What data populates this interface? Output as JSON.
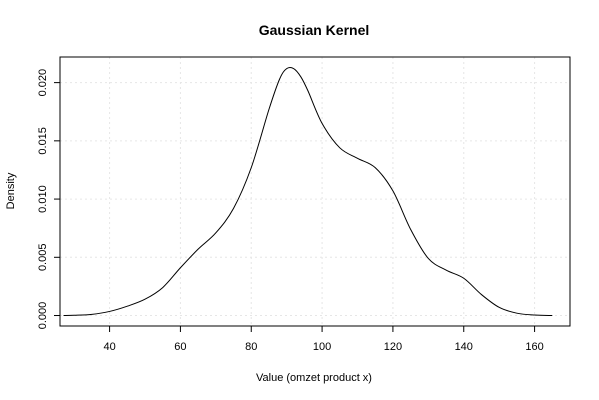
{
  "chart_data": {
    "type": "line",
    "title": "Gaussian Kernel",
    "xlabel": "Value (omzet product x)",
    "ylabel": "Density",
    "xlim": [
      26,
      170
    ],
    "ylim": [
      -0.0009,
      0.0222
    ],
    "x_ticks": [
      40,
      60,
      80,
      100,
      120,
      140,
      160
    ],
    "y_ticks": [
      0.0,
      0.005,
      0.01,
      0.015,
      0.02
    ],
    "x_tick_labels": [
      "40",
      "60",
      "80",
      "100",
      "120",
      "140",
      "160"
    ],
    "y_tick_labels": [
      "0.000",
      "0.005",
      "0.010",
      "0.015",
      "0.020"
    ],
    "grid": true,
    "series": [
      {
        "x": [
          27,
          30,
          35,
          40,
          45,
          50,
          55,
          60,
          65,
          70,
          75,
          80,
          85,
          88,
          90,
          92,
          94,
          96,
          100,
          105,
          110,
          115,
          120,
          125,
          130,
          135,
          140,
          145,
          150,
          155,
          160,
          165
        ],
        "y": [
          0.0,
          2e-05,
          0.0001,
          0.00035,
          0.0008,
          0.0014,
          0.0024,
          0.0041,
          0.0057,
          0.0071,
          0.0092,
          0.0127,
          0.0177,
          0.0203,
          0.0212,
          0.0212,
          0.0205,
          0.0193,
          0.0165,
          0.0144,
          0.0135,
          0.0127,
          0.0107,
          0.0074,
          0.0049,
          0.0039,
          0.0032,
          0.0018,
          0.0007,
          0.0002,
          4e-05,
          0.0
        ]
      }
    ]
  }
}
